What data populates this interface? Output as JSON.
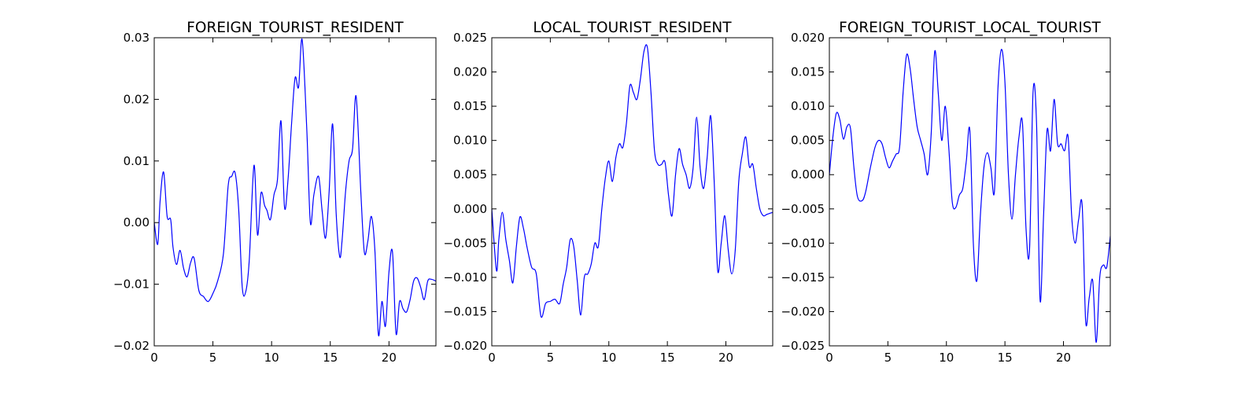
{
  "line_color": "#0000ff",
  "chart_data": [
    {
      "type": "line",
      "title": "FOREIGN_TOURIST_RESIDENT",
      "xlim": [
        0,
        24
      ],
      "ylim": [
        -0.02,
        0.03
      ],
      "xticks": [
        0,
        5,
        10,
        15,
        20
      ],
      "xtick_labels": [
        "0",
        "5",
        "10",
        "15",
        "20"
      ],
      "yticks": [
        -0.02,
        -0.01,
        0.0,
        0.01,
        0.02,
        0.03
      ],
      "ytick_labels": [
        "−0.02",
        "−0.01",
        "0.00",
        "0.01",
        "0.02",
        "0.03"
      ],
      "grid": false,
      "series": [
        {
          "x": [
            0,
            0.3,
            0.5,
            0.8,
            1.1,
            1.4,
            1.6,
            1.9,
            2.2,
            2.5,
            2.8,
            3.1,
            3.4,
            3.8,
            4.2,
            4.6,
            5.0,
            5.4,
            5.9,
            6.3,
            6.6,
            6.9,
            7.2,
            7.5,
            7.8,
            8.1,
            8.5,
            8.8,
            9.1,
            9.4,
            9.6,
            9.9,
            10.2,
            10.5,
            10.8,
            11.1,
            11.4,
            11.7,
            12.0,
            12.3,
            12.6,
            13.0,
            13.3,
            13.6,
            14.0,
            14.3,
            14.6,
            14.9,
            15.2,
            15.5,
            15.8,
            16.0,
            16.3,
            16.6,
            16.9,
            17.2,
            17.6,
            17.9,
            18.2,
            18.5,
            18.8,
            19.1,
            19.4,
            19.7,
            20.0,
            20.3,
            20.6,
            20.9,
            21.2,
            21.5,
            21.8,
            22.1,
            22.4,
            22.7,
            23.0,
            23.3,
            23.6,
            24.0
          ],
          "y": [
            0.0,
            -0.0035,
            0.0035,
            0.0082,
            0.001,
            0.0005,
            -0.004,
            -0.0068,
            -0.0045,
            -0.0074,
            -0.0088,
            -0.0065,
            -0.0058,
            -0.011,
            -0.012,
            -0.0128,
            -0.0115,
            -0.0095,
            -0.005,
            0.006,
            0.0075,
            0.008,
            0.002,
            -0.0105,
            -0.0112,
            -0.006,
            0.0093,
            -0.002,
            0.0048,
            0.0028,
            0.002,
            0.0005,
            0.0045,
            0.007,
            0.0165,
            0.0025,
            0.007,
            0.016,
            0.0235,
            0.022,
            0.0297,
            0.015,
            0.0,
            0.0045,
            0.0075,
            0.002,
            -0.0025,
            0.005,
            0.016,
            0.0015,
            -0.0055,
            -0.003,
            0.005,
            0.01,
            0.012,
            0.0205,
            0.005,
            -0.0048,
            -0.003,
            0.001,
            -0.0045,
            -0.0182,
            -0.0128,
            -0.0168,
            -0.008,
            -0.0048,
            -0.018,
            -0.0128,
            -0.014,
            -0.0145,
            -0.0125,
            -0.0095,
            -0.009,
            -0.0105,
            -0.0125,
            -0.0095,
            -0.0092,
            -0.0095
          ]
        }
      ]
    },
    {
      "type": "line",
      "title": "LOCAL_TOURIST_RESIDENT",
      "xlim": [
        0,
        24
      ],
      "ylim": [
        -0.02,
        0.025
      ],
      "xticks": [
        0,
        5,
        10,
        15,
        20
      ],
      "xtick_labels": [
        "0",
        "5",
        "10",
        "15",
        "20"
      ],
      "yticks": [
        -0.02,
        -0.015,
        -0.01,
        -0.005,
        0.0,
        0.005,
        0.01,
        0.015,
        0.02,
        0.025
      ],
      "ytick_labels": [
        "−0.020",
        "−0.015",
        "−0.010",
        "−0.005",
        "0.000",
        "0.005",
        "0.010",
        "0.015",
        "0.020",
        "0.025"
      ],
      "grid": false,
      "series": [
        {
          "x": [
            0,
            0.4,
            0.6,
            0.9,
            1.2,
            1.5,
            1.8,
            2.1,
            2.4,
            2.7,
            3.0,
            3.4,
            3.8,
            4.2,
            4.6,
            5.0,
            5.4,
            5.8,
            6.1,
            6.4,
            6.7,
            7.0,
            7.3,
            7.6,
            7.9,
            8.2,
            8.5,
            8.8,
            9.1,
            9.4,
            9.7,
            10.0,
            10.3,
            10.6,
            10.9,
            11.2,
            11.5,
            11.8,
            12.1,
            12.4,
            12.7,
            13.0,
            13.3,
            13.6,
            13.9,
            14.2,
            14.5,
            14.8,
            15.1,
            15.4,
            15.7,
            16.0,
            16.3,
            16.6,
            16.9,
            17.2,
            17.5,
            17.8,
            18.1,
            18.4,
            18.7,
            19.0,
            19.3,
            19.6,
            19.9,
            20.2,
            20.5,
            20.8,
            21.1,
            21.4,
            21.7,
            22.0,
            22.3,
            22.6,
            22.9,
            23.2,
            23.5,
            24.0
          ],
          "y": [
            0.0,
            -0.009,
            -0.0045,
            -0.0005,
            -0.0045,
            -0.0075,
            -0.0108,
            -0.0055,
            -0.0012,
            -0.0028,
            -0.0055,
            -0.0085,
            -0.0095,
            -0.0157,
            -0.0138,
            -0.0135,
            -0.0132,
            -0.0138,
            -0.011,
            -0.0085,
            -0.0045,
            -0.0055,
            -0.0105,
            -0.0155,
            -0.01,
            -0.0095,
            -0.008,
            -0.005,
            -0.0055,
            0.0,
            0.0045,
            0.007,
            0.004,
            0.0075,
            0.0095,
            0.009,
            0.0125,
            0.018,
            0.017,
            0.016,
            0.019,
            0.023,
            0.0235,
            0.017,
            0.0085,
            0.0065,
            0.0065,
            0.0068,
            0.002,
            -0.001,
            0.005,
            0.0088,
            0.0065,
            0.005,
            0.003,
            0.006,
            0.0134,
            0.006,
            0.003,
            0.0075,
            0.0136,
            0.004,
            -0.009,
            -0.005,
            -0.001,
            -0.006,
            -0.0095,
            -0.006,
            0.004,
            0.008,
            0.0105,
            0.0062,
            0.0065,
            0.003,
            0.0,
            -0.001,
            -0.0008,
            -0.0005
          ]
        }
      ]
    },
    {
      "type": "line",
      "title": "FOREIGN_TOURIST_LOCAL_TOURIST",
      "xlim": [
        0,
        24
      ],
      "ylim": [
        -0.025,
        0.02
      ],
      "xticks": [
        0,
        5,
        10,
        15,
        20
      ],
      "xtick_labels": [
        "0",
        "5",
        "10",
        "15",
        "20"
      ],
      "yticks": [
        -0.025,
        -0.02,
        -0.015,
        -0.01,
        -0.005,
        0.0,
        0.005,
        0.01,
        0.015,
        0.02
      ],
      "ytick_labels": [
        "−0.025",
        "−0.020",
        "−0.015",
        "−0.010",
        "−0.005",
        "0.000",
        "0.005",
        "0.010",
        "0.015",
        "0.020"
      ],
      "grid": false,
      "series": [
        {
          "x": [
            0,
            0.3,
            0.6,
            0.9,
            1.2,
            1.5,
            1.8,
            2.1,
            2.4,
            2.8,
            3.1,
            3.5,
            3.9,
            4.2,
            4.5,
            4.8,
            5.1,
            5.4,
            5.7,
            6.0,
            6.3,
            6.6,
            6.9,
            7.2,
            7.5,
            7.8,
            8.1,
            8.4,
            8.7,
            9.0,
            9.3,
            9.6,
            9.9,
            10.2,
            10.5,
            10.8,
            11.1,
            11.4,
            11.7,
            12.0,
            12.3,
            12.6,
            12.9,
            13.2,
            13.5,
            13.8,
            14.1,
            14.4,
            14.7,
            15.0,
            15.3,
            15.6,
            15.9,
            16.2,
            16.5,
            16.8,
            17.1,
            17.4,
            17.7,
            18.0,
            18.3,
            18.6,
            18.9,
            19.2,
            19.5,
            19.8,
            20.1,
            20.4,
            20.7,
            21.0,
            21.3,
            21.6,
            21.9,
            22.2,
            22.5,
            22.8,
            23.1,
            23.4,
            23.7,
            24.0
          ],
          "y": [
            0.0,
            0.0055,
            0.009,
            0.008,
            0.0052,
            0.007,
            0.0068,
            0.001,
            -0.0032,
            -0.0038,
            -0.0025,
            0.001,
            0.004,
            0.005,
            0.0045,
            0.0025,
            0.001,
            0.002,
            0.003,
            0.004,
            0.012,
            0.0175,
            0.0155,
            0.011,
            0.007,
            0.005,
            0.003,
            0.0,
            0.006,
            0.018,
            0.012,
            0.005,
            0.01,
            0.004,
            -0.004,
            -0.0048,
            -0.003,
            -0.002,
            0.002,
            0.0065,
            -0.01,
            -0.0155,
            -0.006,
            0.001,
            0.0032,
            0.001,
            -0.0025,
            0.0125,
            0.0183,
            0.0135,
            0.0,
            -0.0065,
            0.0,
            0.0055,
            0.0075,
            -0.0078,
            -0.011,
            0.012,
            0.0075,
            -0.0183,
            -0.006,
            0.0065,
            0.0035,
            0.011,
            0.0045,
            0.0045,
            0.0035,
            0.0055,
            -0.006,
            -0.01,
            -0.0065,
            -0.0045,
            -0.0215,
            -0.018,
            -0.0155,
            -0.0245,
            -0.015,
            -0.0132,
            -0.0135,
            -0.009
          ]
        }
      ]
    }
  ]
}
